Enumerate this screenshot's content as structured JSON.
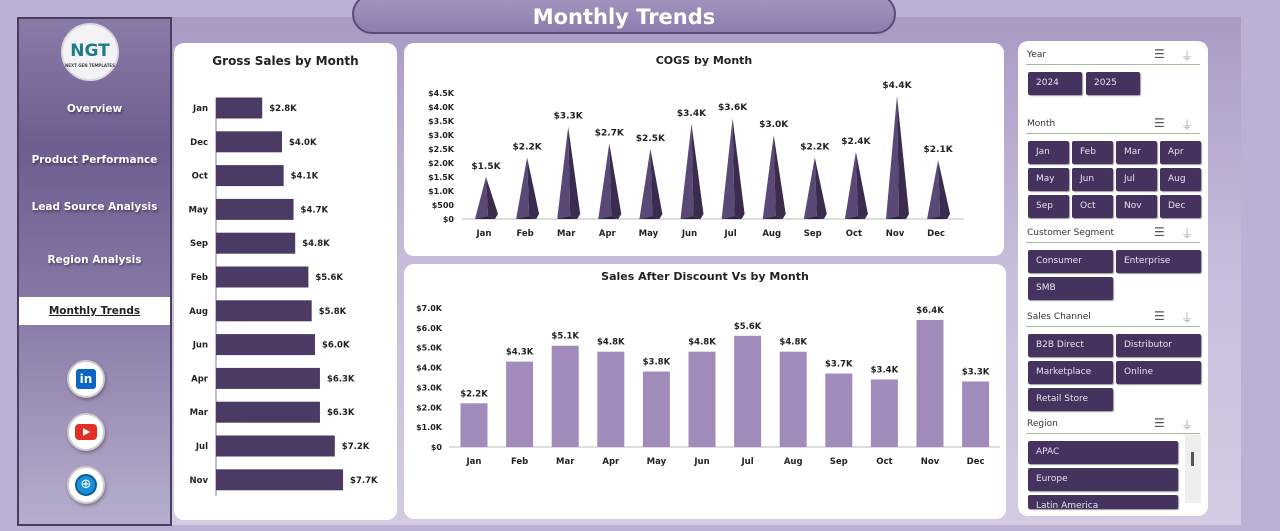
{
  "page_title": "Monthly Trends",
  "sidebar": {
    "logo": "NGT",
    "logo_sub": "NEXT GEN TEMPLATES",
    "items": [
      {
        "label": "Overview"
      },
      {
        "label": "Product Performance"
      },
      {
        "label": "Lead Source  Analysis"
      },
      {
        "label": "Region Analysis"
      },
      {
        "label": "Monthly Trends",
        "active": true
      }
    ],
    "social": [
      "linkedin-icon",
      "youtube-icon",
      "globe-icon"
    ]
  },
  "slicers": {
    "year": {
      "title": "Year",
      "items": [
        "2024",
        "2025"
      ]
    },
    "month": {
      "title": "Month",
      "items": [
        "Jan",
        "Feb",
        "Mar",
        "Apr",
        "May",
        "Jun",
        "Jul",
        "Aug",
        "Sep",
        "Oct",
        "Nov",
        "Dec"
      ]
    },
    "segment": {
      "title": "Customer Segment",
      "items": [
        "Consumer",
        "Enterprise",
        "SMB"
      ]
    },
    "channel": {
      "title": "Sales Channel",
      "items": [
        "B2B Direct",
        "Distributor",
        "Marketplace",
        "Online",
        "Retail Store"
      ]
    },
    "region": {
      "title": "Region",
      "items": [
        "APAC",
        "Europe",
        "Latin America"
      ]
    }
  },
  "chart_data": [
    {
      "type": "bar",
      "orientation": "horizontal",
      "title": "Gross Sales by Month",
      "categories": [
        "Jan",
        "Dec",
        "Oct",
        "May",
        "Sep",
        "Feb",
        "Aug",
        "Jun",
        "Apr",
        "Mar",
        "Jul",
        "Nov"
      ],
      "values": [
        2.8,
        4.0,
        4.1,
        4.7,
        4.8,
        5.6,
        5.8,
        6.0,
        6.3,
        6.3,
        7.2,
        7.7
      ],
      "labels": [
        "$2.8K",
        "$4.0K",
        "$4.1K",
        "$4.7K",
        "$4.8K",
        "$5.6K",
        "$5.8K",
        "$6.0K",
        "$6.3K",
        "$6.3K",
        "$7.2K",
        "$7.7K"
      ],
      "unit": "$K",
      "color": "#4b3a63"
    },
    {
      "type": "bar",
      "style": "pyramid",
      "title": "COGS by Month",
      "categories": [
        "Jan",
        "Feb",
        "Mar",
        "Apr",
        "May",
        "Jun",
        "Jul",
        "Aug",
        "Sep",
        "Oct",
        "Nov",
        "Dec"
      ],
      "values": [
        1.5,
        2.2,
        3.3,
        2.7,
        2.5,
        3.4,
        3.6,
        3.0,
        2.2,
        2.4,
        4.4,
        2.1
      ],
      "labels": [
        "$1.5K",
        "$2.2K",
        "$3.3K",
        "$2.7K",
        "$2.5K",
        "$3.4K",
        "$3.6K",
        "$3.0K",
        "$2.2K",
        "$2.4K",
        "$4.4K",
        "$2.1K"
      ],
      "yticks": [
        "$0",
        "$500",
        "$1.0K",
        "$1.5K",
        "$2.0K",
        "$2.5K",
        "$3.0K",
        "$3.5K",
        "$4.0K",
        "$4.5K"
      ],
      "ylim": [
        0,
        4.5
      ],
      "color": "#4b3a63"
    },
    {
      "type": "bar",
      "title": "Sales After Discount Vs  by Month",
      "categories": [
        "Jan",
        "Feb",
        "Mar",
        "Apr",
        "May",
        "Jun",
        "Jul",
        "Aug",
        "Sep",
        "Oct",
        "Nov",
        "Dec"
      ],
      "values": [
        2.2,
        4.3,
        5.1,
        4.8,
        3.8,
        4.8,
        5.6,
        4.8,
        3.7,
        3.4,
        6.4,
        3.3
      ],
      "labels": [
        "$2.2K",
        "$4.3K",
        "$5.1K",
        "$4.8K",
        "$3.8K",
        "$4.8K",
        "$5.6K",
        "$4.8K",
        "$3.7K",
        "$3.4K",
        "$6.4K",
        "$3.3K"
      ],
      "yticks": [
        "$0",
        "$1.0K",
        "$2.0K",
        "$3.0K",
        "$4.0K",
        "$5.0K",
        "$6.0K",
        "$7.0K"
      ],
      "ylim": [
        0,
        7
      ],
      "color": "#a08bbb"
    }
  ]
}
